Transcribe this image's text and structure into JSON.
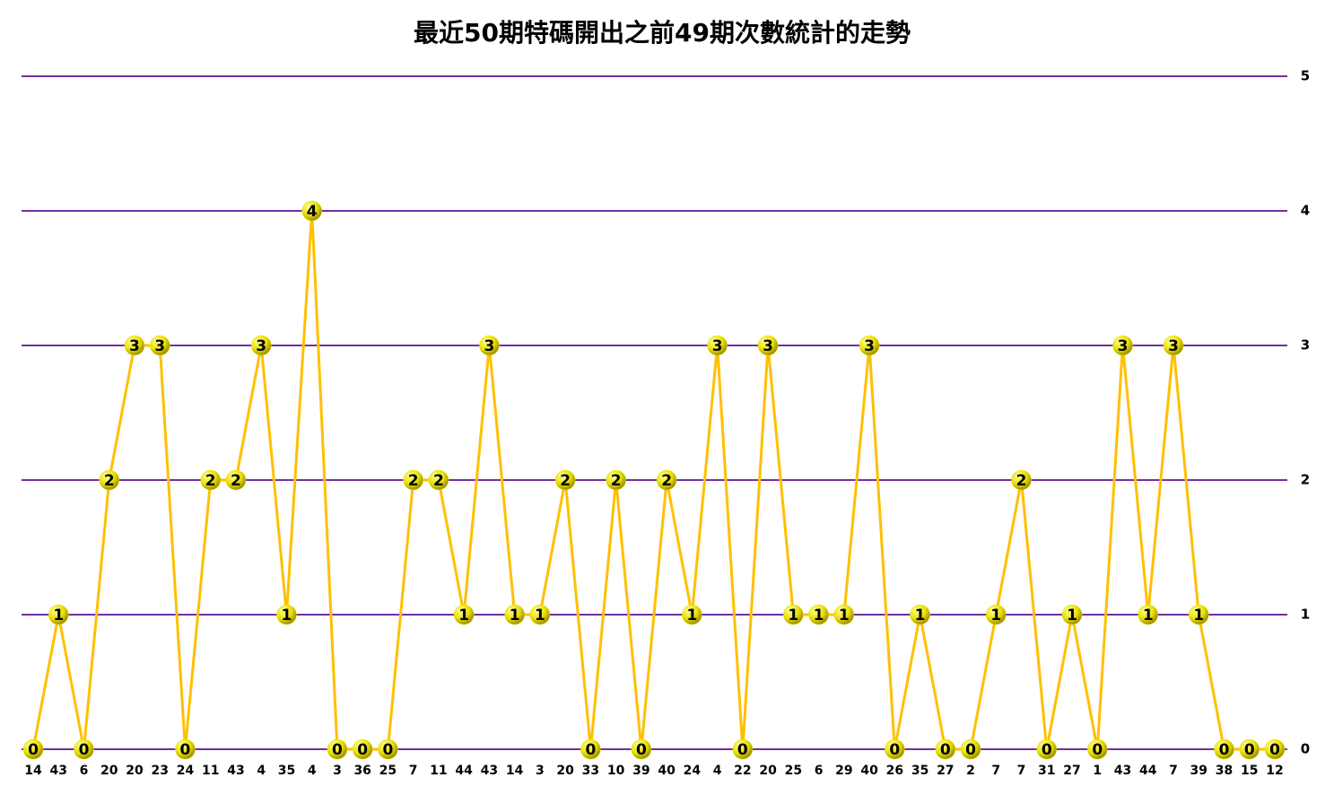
{
  "chart_data": {
    "type": "line",
    "title": "最近50期特碼開出之前49期次數統計的走勢",
    "categories": [
      "14",
      "43",
      "6",
      "20",
      "20",
      "23",
      "24",
      "11",
      "43",
      "4",
      "35",
      "4",
      "3",
      "36",
      "25",
      "7",
      "11",
      "44",
      "43",
      "14",
      "3",
      "20",
      "33",
      "10",
      "39",
      "40",
      "24",
      "4",
      "22",
      "20",
      "25",
      "6",
      "29",
      "40",
      "26",
      "35",
      "27",
      "2",
      "7",
      "7",
      "31",
      "27",
      "1",
      "43",
      "44",
      "7",
      "39",
      "38",
      "15",
      "12"
    ],
    "values": [
      0,
      1,
      0,
      2,
      3,
      3,
      0,
      2,
      2,
      3,
      1,
      4,
      0,
      0,
      0,
      2,
      2,
      1,
      3,
      1,
      1,
      2,
      0,
      2,
      0,
      2,
      1,
      3,
      0,
      3,
      1,
      1,
      1,
      3,
      0,
      1,
      0,
      0,
      1,
      2,
      0,
      1,
      0,
      3,
      1,
      3,
      1,
      0,
      0,
      0
    ],
    "color": "#ffc000",
    "marker_color": "#e8e000",
    "grid_color": "#7030a0",
    "ylim": [
      0,
      5
    ],
    "yticks": [
      0,
      1,
      2,
      3,
      4,
      5
    ],
    "grid": true
  }
}
